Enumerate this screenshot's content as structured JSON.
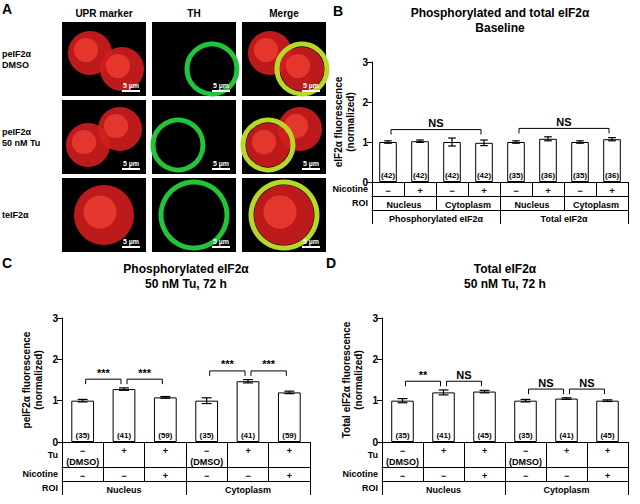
{
  "image_panel": {
    "panel_label": "A",
    "columns": [
      "UPR marker",
      "TH",
      "Merge"
    ],
    "rows": [
      "peIF2α\nDMSO",
      "peIF2α\n50 nM Tu",
      "teIF2α"
    ],
    "scale_bar": "5 µm"
  },
  "chart_data": [
    {
      "type": "bar",
      "panel_label": "B",
      "title": "Phosphorylated and total eIF2α",
      "subtitle": "Baseline",
      "y_label": "eIF2α fluorescence\n(normalized)",
      "category_label": "Nicotine",
      "categories": [
        "−",
        "+",
        "−",
        "+",
        "−",
        "+",
        "−",
        "+"
      ],
      "x_groups": [
        {
          "label": "ROI",
          "cells": [
            "Nucleus",
            "Cytoplasm",
            "Nucleus",
            "Cytoplasm"
          ]
        },
        {
          "cells": [
            "Phosphorylated eIF2α",
            "Total eIF2α"
          ]
        }
      ],
      "values": [
        1.0,
        1.02,
        1.0,
        0.98,
        1.0,
        1.08,
        1.0,
        1.07
      ],
      "errors": [
        0.03,
        0.03,
        0.1,
        0.07,
        0.03,
        0.05,
        0.03,
        0.04
      ],
      "n_labels": [
        "(42)",
        "(42)",
        "(42)",
        "(42)",
        "(35)",
        "(36)",
        "(35)",
        "(36)"
      ],
      "comparisons": [
        {
          "from": 0,
          "to": 3,
          "label": "NS"
        },
        {
          "from": 4,
          "to": 7,
          "label": "NS"
        }
      ],
      "color": "#ffffff",
      "ylim": [
        0,
        3
      ],
      "yticks": [
        0,
        1,
        2,
        3
      ],
      "grid": false
    },
    {
      "type": "bar",
      "panel_label": "C",
      "title": "Phosphorylated eIF2α",
      "subtitle": "50 nM Tu, 72 h",
      "y_label": "peIF2α fluorescence\n(normalized)",
      "category_label": "Tu",
      "categories": [
        "−\n(DMSO)",
        "+",
        "+",
        "−\n(DMSO)",
        "+",
        "+"
      ],
      "x_groups": [
        {
          "label": "Nicotine",
          "cells": [
            "−",
            "−",
            "+",
            "−",
            "−",
            "+"
          ]
        },
        {
          "label": "ROI",
          "cells": [
            "Nucleus",
            "Cytoplasm"
          ]
        }
      ],
      "values": [
        1.0,
        1.28,
        1.08,
        1.0,
        1.47,
        1.2
      ],
      "errors": [
        0.03,
        0.03,
        0.02,
        0.07,
        0.04,
        0.03
      ],
      "n_labels": [
        "(35)",
        "(41)",
        "(59)",
        "(35)",
        "(41)",
        "(59)"
      ],
      "comparisons": [
        {
          "from": 0,
          "to": 1,
          "label": "***"
        },
        {
          "from": 1,
          "to": 2,
          "label": "***"
        },
        {
          "from": 3,
          "to": 4,
          "label": "***"
        },
        {
          "from": 4,
          "to": 5,
          "label": "***"
        }
      ],
      "color": "#ffffff",
      "ylim": [
        0,
        3
      ],
      "yticks": [
        0,
        1,
        2,
        3
      ],
      "grid": false
    },
    {
      "type": "bar",
      "panel_label": "D",
      "title": "Total eIF2α",
      "subtitle": "50 nM Tu, 72 h",
      "y_label": "Total eIF2α fluorescence\n(normalized)",
      "category_label": "Tu",
      "categories": [
        "−\n(DMSO)",
        "+",
        "+",
        "−\n(DMSO)",
        "+",
        "+"
      ],
      "x_groups": [
        {
          "label": "Nicotine",
          "cells": [
            "−",
            "−",
            "+",
            "−",
            "−",
            "+"
          ]
        },
        {
          "label": "ROI",
          "cells": [
            "Nucleus",
            "Cytoplasm"
          ]
        }
      ],
      "values": [
        1.0,
        1.2,
        1.22,
        1.0,
        1.05,
        1.0
      ],
      "errors": [
        0.05,
        0.06,
        0.03,
        0.03,
        0.02,
        0.02
      ],
      "n_labels": [
        "(35)",
        "(41)",
        "(45)",
        "(35)",
        "(41)",
        "(45)"
      ],
      "comparisons": [
        {
          "from": 0,
          "to": 1,
          "label": "**"
        },
        {
          "from": 1,
          "to": 2,
          "label": "NS"
        },
        {
          "from": 3,
          "to": 4,
          "label": "NS"
        },
        {
          "from": 4,
          "to": 5,
          "label": "NS"
        }
      ],
      "color": "#ffffff",
      "ylim": [
        0,
        3
      ],
      "yticks": [
        0,
        1,
        2,
        3
      ],
      "grid": false
    }
  ]
}
